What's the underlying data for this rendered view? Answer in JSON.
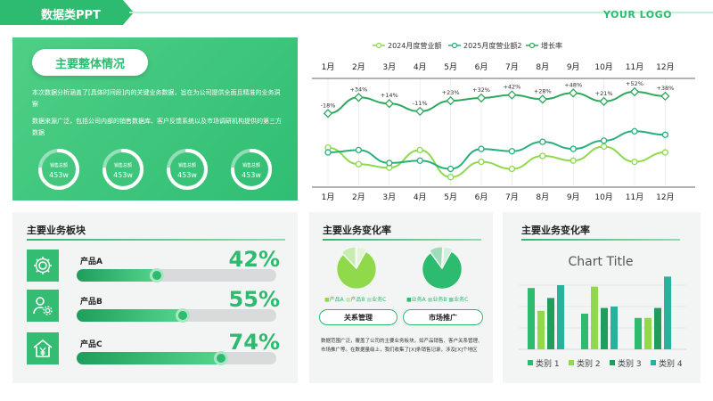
{
  "header": {
    "title": "数据类PPT",
    "logo": "YOUR LOGO"
  },
  "overview": {
    "title": "主要整体情况",
    "paragraph1": "本次数据分析涵盖了[具体时间段]内的关键业务数据，旨在为公司提供全面且精准的业务洞察",
    "paragraph2": "数据来源广泛，包括公司内部的销售数据库、客户反馈系统以及市场调研机构提供的第三方数据",
    "rings": [
      {
        "label": "销售总额",
        "value": "453w",
        "fraction": 0.75
      },
      {
        "label": "销售总额",
        "value": "453w",
        "fraction": 0.75
      },
      {
        "label": "销售总额",
        "value": "453w",
        "fraction": 0.75
      },
      {
        "label": "销售总额",
        "value": "453w",
        "fraction": 0.75
      }
    ]
  },
  "line_chart": {
    "chart_data": {
      "type": "line",
      "categories": [
        "1月",
        "2月",
        "3月",
        "4月",
        "5月",
        "6月",
        "7月",
        "8月",
        "9月",
        "10月",
        "11月",
        "12月"
      ],
      "series": [
        {
          "name": "2024月度营业额",
          "values": [
            42,
            28,
            25,
            40,
            17,
            30,
            24,
            35,
            31,
            43,
            30,
            38
          ],
          "color": "#8fd94b"
        },
        {
          "name": "2025月度营业额2",
          "values": [
            38,
            40,
            29,
            31,
            24,
            41,
            39,
            47,
            41,
            48,
            56,
            53
          ],
          "color": "#27b07a"
        },
        {
          "name": "增长率",
          "values": [
            -18,
            34,
            14,
            -11,
            23,
            32,
            42,
            28,
            48,
            21,
            52,
            38
          ],
          "color": "#2fa85e"
        }
      ],
      "growth_labels": [
        "-18%",
        "+34%",
        "+14%",
        "-11%",
        "+23%",
        "+32%",
        "+42%",
        "+28%",
        "+48%",
        "+21%",
        "+52%",
        "+38%"
      ],
      "title": "",
      "xlabel": "",
      "ylabel": ""
    }
  },
  "panel1": {
    "title": "主要业务板块",
    "products": [
      {
        "name": "产品A",
        "percent_text": "42%",
        "percent": 42,
        "icon": "gear-icon"
      },
      {
        "name": "产品B",
        "percent_text": "55%",
        "percent": 55,
        "icon": "user-gear-icon"
      },
      {
        "name": "产品C",
        "percent_text": "74%",
        "percent": 74,
        "icon": "house-yen-icon"
      }
    ]
  },
  "panel2": {
    "title": "主要业务变化率",
    "pies": [
      {
        "chart_data": {
          "type": "pie",
          "labels": [
            "产品A",
            "产品B",
            "业务C"
          ],
          "values": [
            80,
            12,
            8
          ],
          "colors": [
            "#8fd94b",
            "#c6ecb0",
            "#e2f5d6"
          ]
        },
        "legend": [
          "产品A",
          "产品B",
          "业务C"
        ]
      },
      {
        "chart_data": {
          "type": "pie",
          "labels": [
            "业务A",
            "业务B",
            "业务C"
          ],
          "values": [
            82,
            11,
            7
          ],
          "colors": [
            "#2dbb6f",
            "#9fdcbc",
            "#d3f0df"
          ]
        },
        "legend": [
          "业务A",
          "业务B",
          "业务C"
        ]
      }
    ],
    "buttons": [
      "关系管理",
      "市场推广"
    ],
    "description": "数据范围广泛，覆盖了公司的主要业务板块，如产品销售、客户关系管理、市场推广等。在数据量级上，我们收集了[X]条销售记录，涉及[X]个地区"
  },
  "panel3": {
    "title": "主要业务变化率",
    "chart_data": {
      "type": "bar",
      "title": "Chart Title",
      "groups": 3,
      "series": [
        {
          "name": "类别 1",
          "values": [
            4.3,
            2.5,
            2.2
          ],
          "color": "#2dbb6f"
        },
        {
          "name": "类别 2",
          "values": [
            2.7,
            4.4,
            2.2
          ],
          "color": "#8fd94b"
        },
        {
          "name": "类别 3",
          "values": [
            3.6,
            2.9,
            2.9
          ],
          "color": "#1f9d5c"
        },
        {
          "name": "类别 4",
          "values": [
            4.5,
            3.0,
            5.1
          ],
          "color": "#26b39c"
        }
      ],
      "ylim": [
        0,
        6
      ]
    }
  }
}
